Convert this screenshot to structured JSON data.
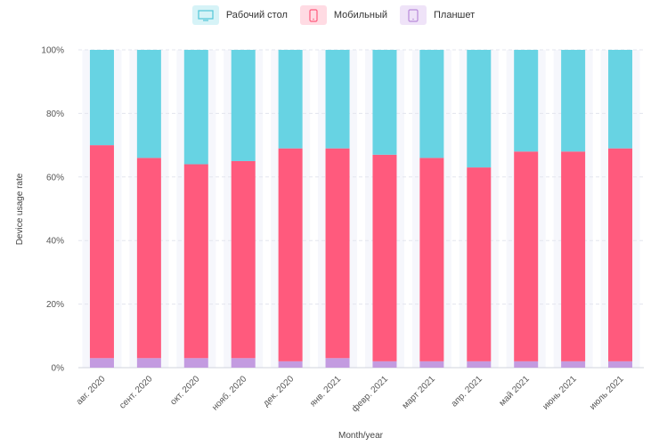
{
  "chart_data": {
    "type": "bar",
    "stacked": true,
    "title": "",
    "xlabel": "Month/year",
    "ylabel": "Device usage rate",
    "ylim": [
      0,
      100
    ],
    "yticks": [
      "0%",
      "20%",
      "40%",
      "60%",
      "80%",
      "100%"
    ],
    "categories": [
      "авг. 2020",
      "сент. 2020",
      "окт. 2020",
      "нояб. 2020",
      "дек. 2020",
      "янв. 2021",
      "февр. 2021",
      "март 2021",
      "апр. 2021",
      "май 2021",
      "июнь 2021",
      "июль 2021"
    ],
    "series": [
      {
        "name": "Планшет",
        "color": "#c39be0",
        "icon": "tablet-icon",
        "values": [
          3,
          3,
          3,
          3,
          2,
          3,
          2,
          2,
          2,
          2,
          2,
          2
        ]
      },
      {
        "name": "Мобильный",
        "color": "#ff5a7d",
        "icon": "mobile-icon",
        "values": [
          67,
          63,
          61,
          62,
          67,
          66,
          65,
          64,
          61,
          66,
          66,
          67
        ]
      },
      {
        "name": "Рабочий стол",
        "color": "#67d3e3",
        "icon": "desktop-icon",
        "values": [
          30,
          34,
          36,
          35,
          31,
          31,
          33,
          34,
          37,
          32,
          32,
          31
        ]
      }
    ],
    "legend_order": [
      "Рабочий стол",
      "Мобильный",
      "Планшет"
    ],
    "legend_position": "top-center",
    "grid": true
  }
}
